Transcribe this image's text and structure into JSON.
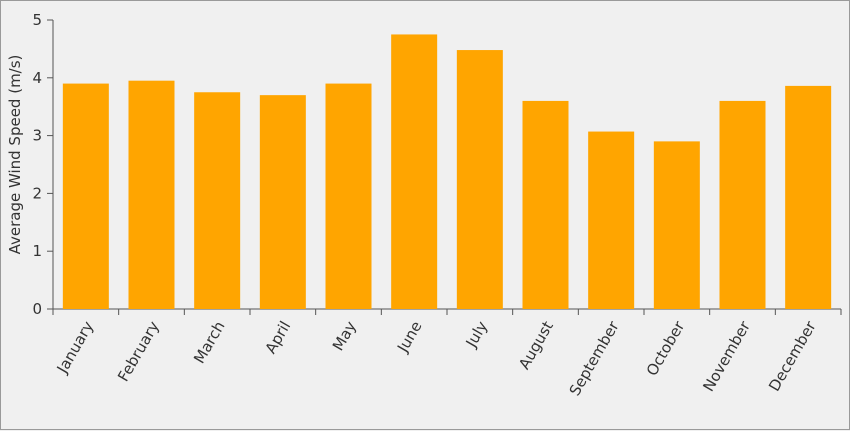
{
  "chart_data": {
    "type": "bar",
    "title": "",
    "xlabel": "",
    "ylabel": "Average Wind Speed (m/s)",
    "ylim": [
      0,
      5
    ],
    "yticks": [
      "0",
      "1",
      "2",
      "3",
      "4",
      "5"
    ],
    "grid": false,
    "categories": [
      "January",
      "February",
      "March",
      "April",
      "May",
      "June",
      "July",
      "August",
      "September",
      "October",
      "November",
      "December"
    ],
    "values": [
      3.9,
      3.95,
      3.75,
      3.7,
      3.9,
      4.75,
      4.48,
      3.6,
      3.07,
      2.9,
      3.6,
      3.86
    ],
    "bar_color": "#ffa500",
    "axis_color": "#555555"
  }
}
